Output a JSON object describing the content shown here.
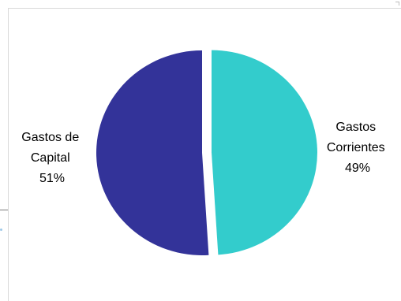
{
  "chart_data": {
    "type": "pie",
    "title": "",
    "slices": [
      {
        "label_lines": [
          "Gastos",
          "Corrientes",
          "49%"
        ],
        "value": 49,
        "color": "#33CCCC",
        "exploded": true
      },
      {
        "label_lines": [
          "Gastos de",
          "Capital",
          "51%"
        ],
        "value": 51,
        "color": "#333399",
        "exploded": false
      }
    ],
    "legend": "none"
  }
}
